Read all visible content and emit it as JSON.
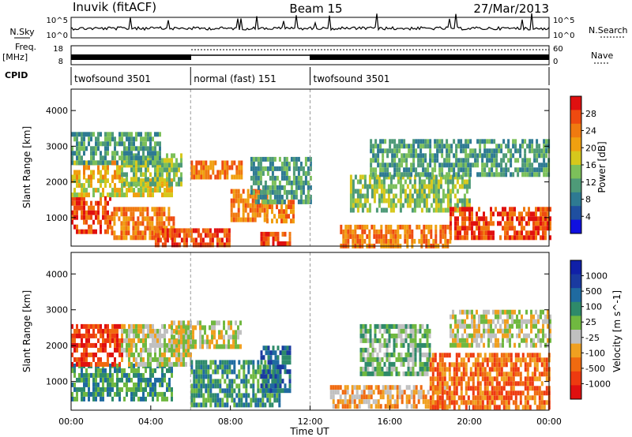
{
  "header": {
    "station": "Inuvik (fitACF)",
    "beam": "Beam 15",
    "date": "27/Mar/2013"
  },
  "noise_panel": {
    "left_label": "N.Sky",
    "right_label": "N.Search",
    "left_ticks": [
      "10^5",
      "10^0"
    ],
    "right_ticks": [
      "10^5",
      "10^0"
    ]
  },
  "freq_panel": {
    "left_label": "Freq.",
    "left_unit": "[MHz]",
    "left_ticks": [
      "18",
      "8"
    ],
    "right_label": "Nave",
    "right_ticks": [
      "60",
      "0"
    ]
  },
  "cpid": {
    "label": "CPID",
    "segments": [
      {
        "name": "twofsound 3501",
        "start_hour": 0,
        "end_hour": 6
      },
      {
        "name": "normal (fast) 151",
        "start_hour": 6,
        "end_hour": 12
      },
      {
        "name": "twofsound 3501",
        "start_hour": 12,
        "end_hour": 24
      }
    ]
  },
  "colors": {
    "power": [
      "#1010e0",
      "#1f4fa0",
      "#2e7a92",
      "#4e9a78",
      "#7cc05a",
      "#d6c81c",
      "#f0a010",
      "#f07a10",
      "#ee4a10",
      "#e01010"
    ],
    "velocity": [
      "#e01010",
      "#ee3a10",
      "#f06a10",
      "#f0a020",
      "#c0c0c0",
      "#70b840",
      "#2e8a6a",
      "#1f6aa0",
      "#1a3aa0",
      "#1020a8"
    ]
  },
  "chart_data": [
    {
      "type": "heatmap",
      "name_ref": "power",
      "xlabel": "",
      "ylabel": "Slant Range [km]",
      "xlim": [
        0,
        24
      ],
      "ylim": [
        200,
        4600
      ],
      "yticks": [
        "1000",
        "2000",
        "3000",
        "4000"
      ],
      "colorbar": {
        "label": "Power [dB]",
        "range": [
          0,
          32
        ],
        "ticks": [
          "4",
          "8",
          "12",
          "16",
          "20",
          "24",
          "28"
        ]
      },
      "regions": [
        {
          "t0": 0.0,
          "t1": 2.0,
          "r0": 600,
          "r1": 1600,
          "v": 28
        },
        {
          "t0": 2.0,
          "t1": 5.2,
          "r0": 500,
          "r1": 1300,
          "v": 26
        },
        {
          "t0": 0.0,
          "t1": 5.0,
          "r0": 1600,
          "r1": 2100,
          "v": 18
        },
        {
          "t0": 0.0,
          "t1": 2.5,
          "r0": 2100,
          "r1": 2600,
          "v": 22
        },
        {
          "t0": 2.5,
          "t1": 5.5,
          "r0": 2000,
          "r1": 2800,
          "v": 14
        },
        {
          "t0": 0.0,
          "t1": 4.5,
          "r0": 2600,
          "r1": 3400,
          "v": 10
        },
        {
          "t0": 4.2,
          "t1": 8.0,
          "r0": 250,
          "r1": 700,
          "v": 28
        },
        {
          "t0": 6.0,
          "t1": 8.5,
          "r0": 2200,
          "r1": 2600,
          "v": 24
        },
        {
          "t0": 8.0,
          "t1": 9.8,
          "r0": 900,
          "r1": 1800,
          "v": 24
        },
        {
          "t0": 9.5,
          "t1": 11.0,
          "r0": 250,
          "r1": 600,
          "v": 28
        },
        {
          "t0": 9.8,
          "t1": 11.2,
          "r0": 900,
          "r1": 1500,
          "v": 24
        },
        {
          "t0": 9.0,
          "t1": 12.0,
          "r0": 1500,
          "r1": 2700,
          "v": 12
        },
        {
          "t0": 13.5,
          "t1": 19.0,
          "r0": 250,
          "r1": 800,
          "v": 26
        },
        {
          "t0": 14.0,
          "t1": 20.0,
          "r0": 1200,
          "r1": 2200,
          "v": 14
        },
        {
          "t0": 15.0,
          "t1": 24.0,
          "r0": 2200,
          "r1": 3200,
          "v": 10
        },
        {
          "t0": 19.0,
          "t1": 24.0,
          "r0": 400,
          "r1": 1300,
          "v": 27
        }
      ]
    },
    {
      "type": "heatmap",
      "name_ref": "velocity",
      "xlabel": "Time UT",
      "ylabel": "Slant Range [km]",
      "xlim": [
        0,
        24
      ],
      "ylim": [
        200,
        4600
      ],
      "xticks": [
        "00:00",
        "04:00",
        "08:00",
        "12:00",
        "16:00",
        "20:00",
        "00:00"
      ],
      "yticks": [
        "1000",
        "2000",
        "3000",
        "4000"
      ],
      "colorbar": {
        "label": "Velocity [m s^-1]",
        "ticks": [
          "1000",
          "500",
          "100",
          "25",
          "-25",
          "-100",
          "-500",
          "-1000"
        ]
      },
      "regions": [
        {
          "t0": 0.0,
          "t1": 5.0,
          "r0": 500,
          "r1": 1500,
          "v": 6
        },
        {
          "t0": 0.0,
          "t1": 2.5,
          "r0": 1500,
          "r1": 2600,
          "v": 1
        },
        {
          "t0": 2.5,
          "t1": 6.0,
          "r0": 1500,
          "r1": 2600,
          "v": 4
        },
        {
          "t0": 5.0,
          "t1": 8.5,
          "r0": 2000,
          "r1": 2700,
          "v": 4
        },
        {
          "t0": 6.0,
          "t1": 10.5,
          "r0": 400,
          "r1": 1600,
          "v": 6
        },
        {
          "t0": 9.5,
          "t1": 11.0,
          "r0": 800,
          "r1": 2000,
          "v": 7
        },
        {
          "t0": 13.0,
          "t1": 19.0,
          "r0": 250,
          "r1": 900,
          "v": 3
        },
        {
          "t0": 14.5,
          "t1": 18.0,
          "r0": 1200,
          "r1": 2600,
          "v": 5
        },
        {
          "t0": 18.0,
          "t1": 24.0,
          "r0": 300,
          "r1": 1800,
          "v": 2
        },
        {
          "t0": 19.0,
          "t1": 24.0,
          "r0": 2000,
          "r1": 3000,
          "v": 4
        }
      ]
    }
  ]
}
